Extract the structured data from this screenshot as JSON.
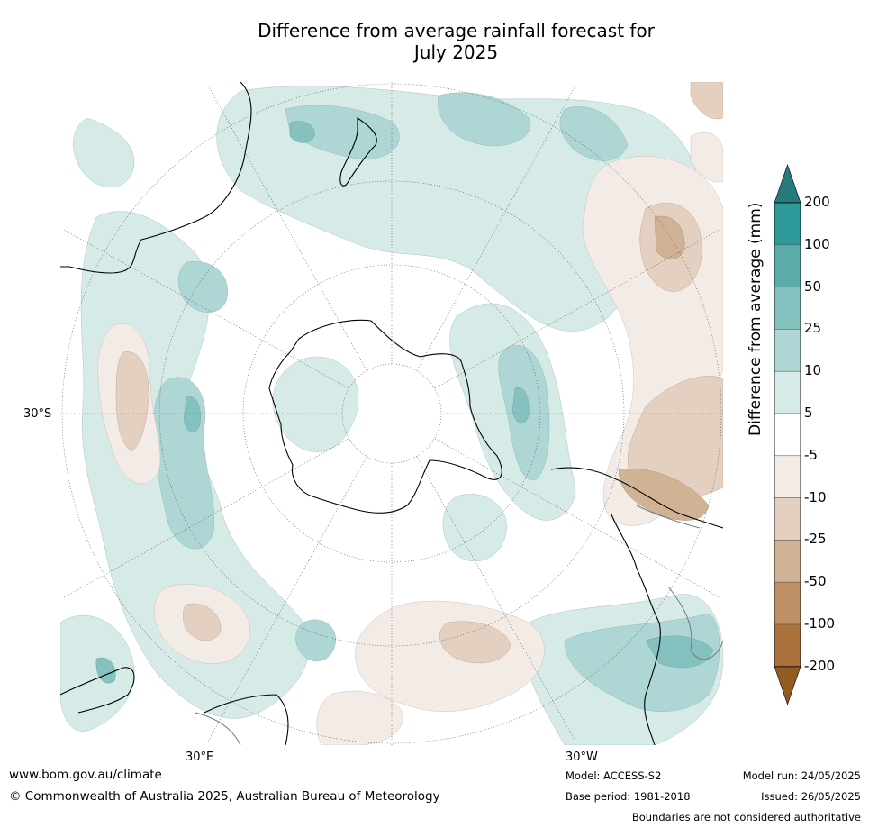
{
  "title": {
    "line1": "Difference from average rainfall forecast for",
    "line2": "July 2025"
  },
  "map": {
    "projection": "south-polar-stereographic",
    "lat_labels": [
      "30°S"
    ],
    "lon_labels": [
      "30°E",
      "30°W"
    ]
  },
  "colorbar": {
    "title": "Difference from average (mm)",
    "tick_labels": [
      "200",
      "100",
      "50",
      "25",
      "10",
      "5",
      "-5",
      "-10",
      "-25",
      "-50",
      "-100",
      "-200"
    ],
    "colors": [
      "#257a7b",
      "#2d9999",
      "#5aadab",
      "#84c1bf",
      "#aed6d4",
      "#d6eae8",
      "#ffffff",
      "#f3ebe5",
      "#e4d0c1",
      "#d0b294",
      "#bd9066",
      "#ab713d",
      "#935a22"
    ]
  },
  "footer": {
    "website": "www.bom.gov.au/climate",
    "copyright": "© Commonwealth of Australia 2025, Australian Bureau of Meteorology",
    "model": "Model: ACCESS-S2",
    "base_period": "Base period: 1981-2018",
    "model_run": "Model run: 24/05/2025",
    "issued": "Issued: 26/05/2025",
    "disclaimer": "Boundaries are not considered authoritative"
  }
}
